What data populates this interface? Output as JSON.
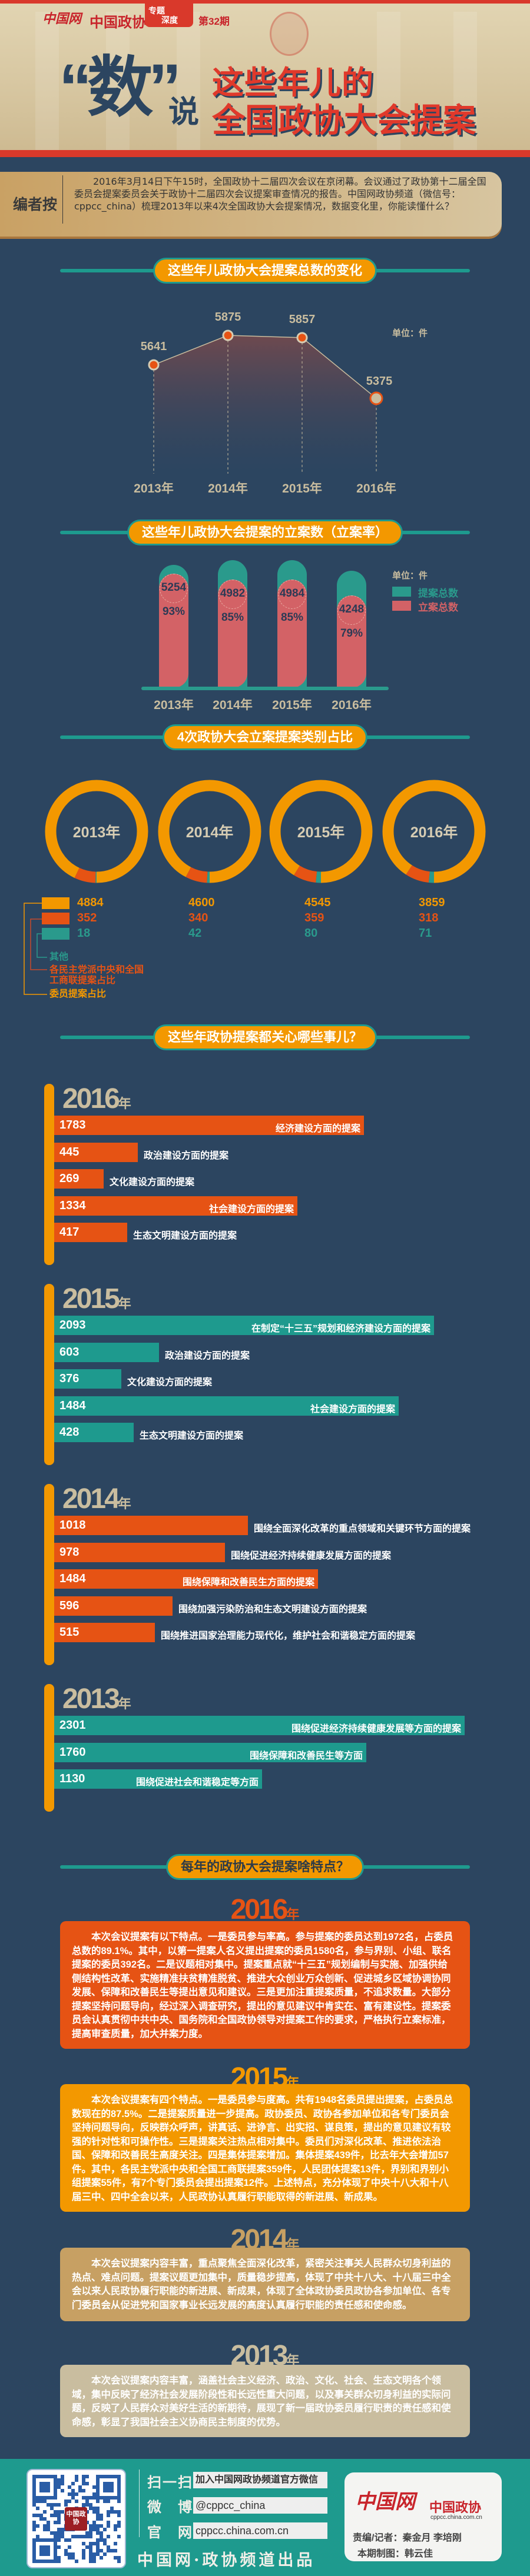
{
  "header": {
    "logo_text": "中国网",
    "site_name": "中国政协",
    "badge_line1": "专题",
    "badge_line2": "深度",
    "issue": "第32期",
    "title_shu": "“数”",
    "title_shuo": "说",
    "title_line1": "这些年儿的",
    "title_line2": "全国政协大会提案"
  },
  "intro": {
    "label": "编者按",
    "text": "2016年3月14日下午15时，全国政协十二届四次会议在京闭幕。会议通过了政协第十二届全国委员会提案委员会关于政协十二届四次会议提案审查情况的报告。中国网政协频道（微信号：cppcc_china）梳理2013年以来4次全国政协大会提案情况，数据变化里，你能读懂什么？"
  },
  "sections": {
    "total": "这些年儿政协大会提案总数的变化",
    "filed": "这些年儿政协大会提案的立案数（立案率）",
    "category": "4次政协大会立案提案类别占比",
    "topics": "这些年政协提案都关心哪些事儿？",
    "features": "每年的政协大会提案啥特点？"
  },
  "colors": {
    "background": "#2c4560",
    "orange": "#f39800",
    "red_orange": "#e65314",
    "teal": "#1e9a8e",
    "beige": "#c9bd9f",
    "pink_red": "#d36266"
  },
  "chart_data": [
    {
      "type": "area",
      "title": "这些年儿政协大会提案总数的变化",
      "unit": "单位：件",
      "categories": [
        "2013年",
        "2014年",
        "2015年",
        "2016年"
      ],
      "values": [
        5641,
        5875,
        5857,
        5375
      ],
      "labels": [
        "5641",
        "5875",
        "5857",
        "5375"
      ]
    },
    {
      "type": "bar",
      "title": "这些年儿政协大会提案的立案数（立案率）",
      "unit": "单位：件",
      "categories": [
        "2013年",
        "2014年",
        "2015年",
        "2016年"
      ],
      "series": [
        {
          "name": "提案总数",
          "values": [
            5641,
            5875,
            5857,
            5375
          ],
          "color": "#2a9a8c"
        },
        {
          "name": "立案总数",
          "values": [
            5254,
            4982,
            4984,
            4248
          ],
          "color": "#d36266"
        }
      ],
      "value_labels": [
        "5254",
        "4982",
        "4984",
        "4248"
      ],
      "rate_labels": [
        "93%",
        "85%",
        "85%",
        "79%"
      ]
    },
    {
      "type": "pie",
      "title": "4次政协大会立案提案类别占比",
      "categories": [
        "2013年",
        "2014年",
        "2015年",
        "2016年"
      ],
      "series": [
        {
          "name": "委员提案占比",
          "values": [
            4884,
            4600,
            4545,
            3859
          ],
          "labels": [
            "4884",
            "4600",
            "4545",
            "3859"
          ],
          "color": "#f39800"
        },
        {
          "name": "各民主党派中央和全国工商联提案占比",
          "name_line1": "各民主党派中央和全国",
          "name_line2": "工商联提案占比",
          "values": [
            352,
            340,
            359,
            318
          ],
          "labels": [
            "352",
            "340",
            "359",
            "318"
          ],
          "color": "#e65314"
        },
        {
          "name": "其他",
          "values": [
            18,
            42,
            80,
            71
          ],
          "labels": [
            "18",
            "42",
            "80",
            "71"
          ],
          "color": "#2a9a8c"
        }
      ]
    },
    {
      "type": "bar",
      "title": "这些年政协提案都关心哪些事儿？",
      "groups": [
        {
          "year": "2016",
          "suffix": "年",
          "color": "#e65314",
          "items": [
            {
              "value": 1783,
              "label": "1783",
              "text": "经济建设方面的提案"
            },
            {
              "value": 445,
              "label": "445",
              "text": "政治建设方面的提案"
            },
            {
              "value": 269,
              "label": "269",
              "text": "文化建设方面的提案"
            },
            {
              "value": 1334,
              "label": "1334",
              "text": "社会建设方面的提案"
            },
            {
              "value": 417,
              "label": "417",
              "text": "生态文明建设方面的提案"
            }
          ]
        },
        {
          "year": "2015",
          "suffix": "年",
          "color": "#1e9a8e",
          "items": [
            {
              "value": 2093,
              "label": "2093",
              "text": "在制定“十三五”规划和经济建设方面的提案"
            },
            {
              "value": 603,
              "label": "603",
              "text": "政治建设方面的提案"
            },
            {
              "value": 376,
              "label": "376",
              "text": "文化建设方面的提案"
            },
            {
              "value": 1484,
              "label": "1484",
              "text": "社会建设方面的提案"
            },
            {
              "value": 428,
              "label": "428",
              "text": "生态文明建设方面的提案"
            }
          ]
        },
        {
          "year": "2014",
          "suffix": "年",
          "color": "#e65314",
          "items": [
            {
              "value": 1018,
              "label": "1018",
              "text": "围绕全面深化改革的重点领域和关键环节方面的提案"
            },
            {
              "value": 978,
              "label": "978",
              "text": "围绕促进经济持续健康发展方面的提案"
            },
            {
              "value": 1484,
              "label": "1484",
              "text": "围绕保障和改善民生方面的提案"
            },
            {
              "value": 596,
              "label": "596",
              "text": "围绕加强污染防治和生态文明建设方面的提案"
            },
            {
              "value": 515,
              "label": "515",
              "text": "围绕推进国家治理能力现代化，维护社会和谐稳定方面的提案"
            }
          ]
        },
        {
          "year": "2013",
          "suffix": "年",
          "color": "#1e9a8e",
          "items": [
            {
              "value": 2301,
              "label": "2301",
              "text": "围绕促进经济持续健康发展等方面的提案"
            },
            {
              "value": 1760,
              "label": "1760",
              "text": "围绕保障和改善民生等方面"
            },
            {
              "value": 1130,
              "label": "1130",
              "text": "围绕促进社会和谐稳定等方面"
            }
          ]
        }
      ]
    }
  ],
  "features": [
    {
      "year": "2016",
      "suffix": "年",
      "color": "#e65314",
      "text": "本次会议提案有以下特点。一是委员参与率高。参与提案的委员达到1972名，占委员总数的89.1%。其中，以第一提案人名义提出提案的委员1580名，参与界别、小组、联名提案的委员392名。二是议题相对集中。提案重点就“十三五”规划编制与实施、加强供给侧结构性改革、实施精准扶贫精准脱贫、推进大众创业万众创新、促进城乡区域协调协同发展、保障和改善民生等提出意见和建议。三是更加注重提案质量，不追求数量。大部分提案坚持问题导向，经过深入调查研究，提出的意见建议中肯实在、富有建设性。提案委员会认真贯彻中共中央、国务院和全国政协领导对提案工作的要求，严格执行立案标准，提高审查质量，加大并案力度。"
    },
    {
      "year": "2015",
      "suffix": "年",
      "color": "#f39800",
      "text": "本次会议提案有四个特点。一是委员参与度高。共有1948名委员提出提案，占委员总数现在的87.5%。二是提案质量进一步提高。政协委员、政协各参加单位和各专门委员会坚持问题导向，反映群众呼声，讲真话、进诤言、出实招、谋良策，提出的意见建议有较强的针对性和可操作性。三是提案关注热点相对集中。委员们对深化改革、推进依法治国、保障和改善民生高度关注。四是集体提案增加。集体提案439件，比去年大会增加57件。其中，各民主党派中央和全国工商联提案359件，人民团体提案13件，界别和界别小组提案55件，有7个专门委员会提出提案12件。上述特点，充分体现了中央十八大和十八届三中、四中全会以来，人民政协认真履行职能取得的新进展、新成果。"
    },
    {
      "year": "2014",
      "suffix": "年",
      "color": "#c7a063",
      "text": "本次会议提案内容丰富，重点聚焦全面深化改革，紧密关注事关人民群众切身利益的热点、难点问题。提案议题更加集中，质量稳步提高，体现了中共十八大、十八届三中全会以来人民政协履行职能的新进展、新成果，体现了全体政协委员政协各参加单位、各专门委员会从促进党和国家事业长远发展的高度认真履行职能的责任感和使命感。"
    },
    {
      "year": "2013",
      "suffix": "年",
      "color": "#c9bd9f",
      "text": "本次会议提案内容丰富，涵盖社会主义经济、政治、文化、社会、生态文明各个领域，集中反映了经济社会发展阶段性和长远性重大问题，以及事关群众切身利益的实际问题，反映了人民群众对美好生活的新期待，展现了新一届政协委员履行职责的责任感和使命感，彰显了我国社会主义协商民主制度的优势。"
    }
  ],
  "footer": {
    "qr_badge": "中国政协",
    "scan_key": "扫一扫",
    "scan_value": "加入中国网政协频道官方微信",
    "weibo_key": "微　博",
    "weibo_value": "@cppcc_china",
    "site_key": "官　网",
    "site_value": "cppcc.china.com.cn",
    "producer": "中国网·政协频道出品",
    "card_logo": "中国网",
    "card_site_name": "中国政协",
    "card_url": "cppcc.china.com.cn",
    "editors": "责编/记者：秦金月 李培刚",
    "designer": "本期制图：韩云佳"
  }
}
